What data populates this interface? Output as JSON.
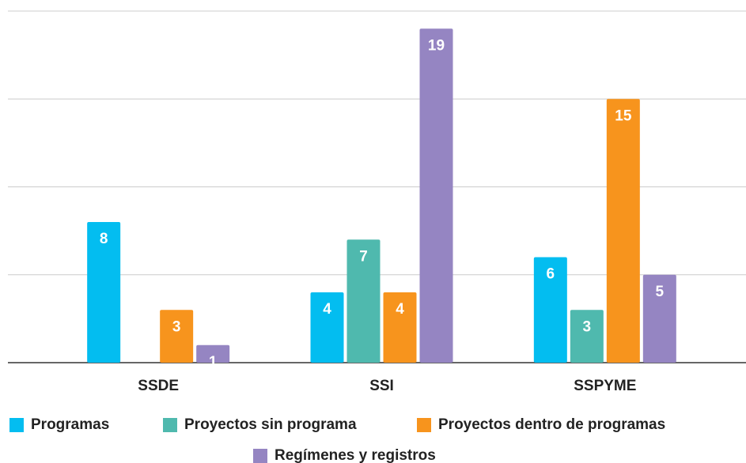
{
  "chart_data": {
    "type": "bar",
    "categories": [
      "SSDE",
      "SSI",
      "SSPYME"
    ],
    "series": [
      {
        "name": "Programas",
        "color": "#03bdf0",
        "values": [
          8,
          4,
          6
        ]
      },
      {
        "name": "Proyectos sin programa",
        "color": "#4fb9ae",
        "values": [
          null,
          7,
          3
        ]
      },
      {
        "name": "Proyectos dentro de programas",
        "color": "#f7941d",
        "values": [
          3,
          4,
          15
        ]
      },
      {
        "name": "Regímenes y registros",
        "color": "#9585c2",
        "values": [
          1,
          19,
          5
        ]
      }
    ],
    "ylim": [
      0,
      20
    ],
    "yticks": [
      0,
      5,
      10,
      15,
      20
    ],
    "grid": true,
    "legend": "bottom"
  }
}
